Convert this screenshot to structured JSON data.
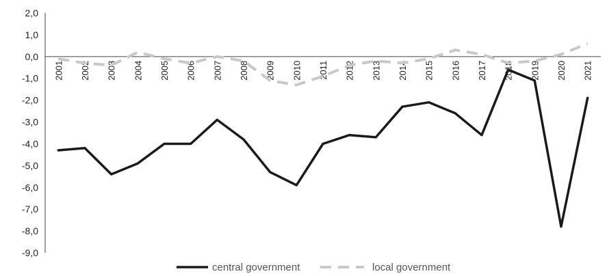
{
  "chart_data": {
    "type": "line",
    "title": "",
    "xlabel": "",
    "ylabel": "",
    "ylim": [
      -9,
      2
    ],
    "y_ticks": [
      "2,0",
      "1,0",
      "0,0",
      "-1,0",
      "-2,0",
      "-3,0",
      "-4,0",
      "-5,0",
      "-6,0",
      "-7,0",
      "-8,0",
      "-9,0"
    ],
    "x": [
      "2001",
      "2002",
      "2003",
      "2004",
      "2005",
      "2006",
      "2007",
      "2008",
      "2009",
      "2010",
      "2011",
      "2012",
      "2013",
      "2014",
      "2015",
      "2016",
      "2017",
      "2018",
      "2019",
      "2020",
      "2021"
    ],
    "series": [
      {
        "name": "central government",
        "color": "#1a1a1a",
        "style": "solid",
        "values": [
          -4.3,
          -4.2,
          -5.4,
          -4.9,
          -4.0,
          -4.0,
          -2.9,
          -3.8,
          -5.3,
          -5.9,
          -4.0,
          -3.6,
          -3.7,
          -2.3,
          -2.1,
          -2.6,
          -3.6,
          -0.6,
          -1.1,
          -7.8,
          -1.9
        ]
      },
      {
        "name": "local government",
        "color": "#c8c8c8",
        "style": "dashed",
        "values": [
          -0.1,
          -0.3,
          -0.4,
          0.2,
          -0.1,
          -0.3,
          0.0,
          -0.2,
          -1.1,
          -1.3,
          -0.9,
          -0.4,
          -0.2,
          -0.3,
          -0.1,
          0.3,
          0.1,
          -0.3,
          -0.2,
          0.1,
          0.6
        ]
      }
    ],
    "grid": false,
    "legend_position": "bottom"
  }
}
